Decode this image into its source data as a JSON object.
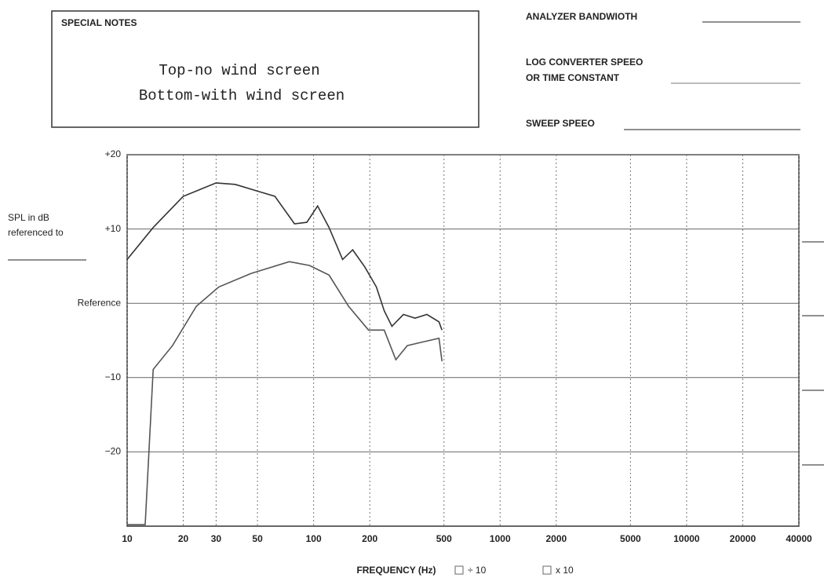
{
  "chart_data": {
    "type": "line",
    "notes_title": "SPECIAL NOTES",
    "notes": [
      "Top-no wind screen",
      "Bottom-with wind screen"
    ],
    "fields": [
      "ANALYZER BANDWIOTH",
      "LOG CONVERTER SPEEO",
      "OR TIME CONSTANT",
      "SWEEP SPEEO"
    ],
    "ylabel": [
      "SPL in dB",
      "referenced to"
    ],
    "xlabel": "FREQUENCY (Hz)",
    "scale_options": [
      "÷ 10",
      "x 10"
    ],
    "xscale": "log",
    "grid": true,
    "xlim": [
      10,
      40000
    ],
    "xticks": [
      10,
      20,
      30,
      50,
      100,
      200,
      500,
      1000,
      2000,
      5000,
      10000,
      20000,
      40000
    ],
    "ylim": [
      -30,
      20
    ],
    "yticks": [
      {
        "value": 20,
        "label": "+20"
      },
      {
        "value": 10,
        "label": "+10"
      },
      {
        "value": 0,
        "label": "Reference"
      },
      {
        "value": -10,
        "label": "−10"
      },
      {
        "value": -20,
        "label": "−20"
      }
    ],
    "series": [
      {
        "name": "Top-no wind screen",
        "color": "#333333",
        "x": [
          10,
          13.8,
          20,
          30,
          38,
          50,
          62,
          79,
          92,
          105,
          121,
          143,
          162,
          188,
          217,
          239,
          263,
          303,
          350,
          405,
          470,
          488
        ],
        "values": [
          5.9,
          10.2,
          14.4,
          16.2,
          16,
          15.1,
          14.4,
          10.7,
          10.9,
          13.1,
          10.2,
          5.9,
          7.2,
          4.9,
          2.2,
          -1,
          -3.1,
          -1.5,
          -2,
          -1.5,
          -2.5,
          -3.6
        ]
      },
      {
        "name": "Bottom-with wind screen",
        "color": "#555555",
        "x": [
          10,
          12.5,
          13.8,
          17.5,
          23.5,
          31,
          46,
          74,
          95,
          121,
          154,
          197,
          239,
          276,
          318,
          386,
          470,
          488
        ],
        "values": [
          -29.8,
          -29.8,
          -8.9,
          -5.7,
          -0.4,
          2.2,
          4,
          5.6,
          5.1,
          3.8,
          -0.4,
          -3.6,
          -3.6,
          -7.6,
          -5.7,
          -5.2,
          -4.7,
          -7.8
        ]
      }
    ]
  }
}
